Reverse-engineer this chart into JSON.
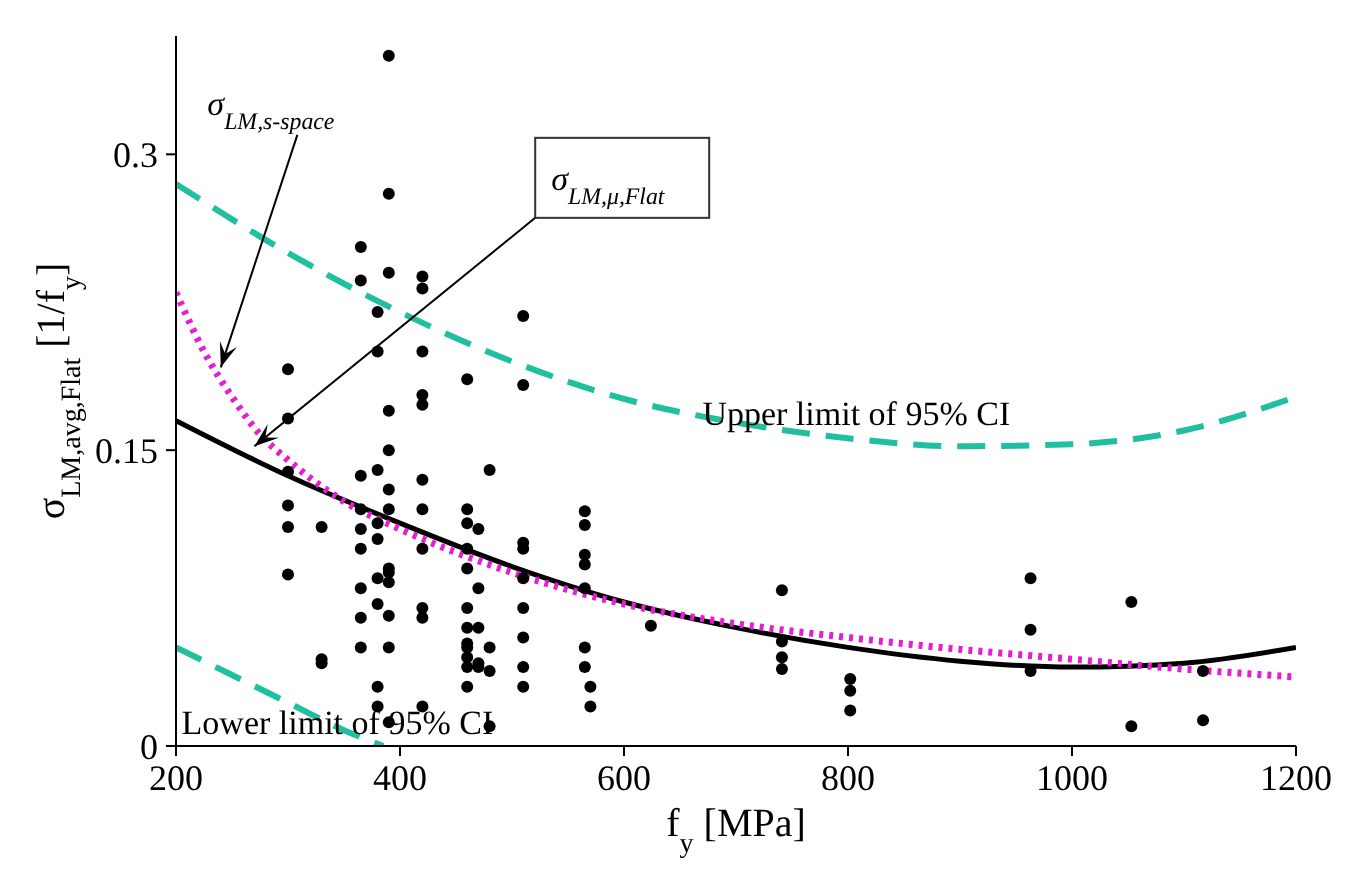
{
  "chart_data": {
    "type": "scatter",
    "xlabel": "f$_{y}$ [MPa]",
    "ylabel": "σ$_{LM,avg,Flat}$ [1/f$_{y}$]",
    "xlim": [
      200,
      1200
    ],
    "xticks": [
      200,
      400,
      600,
      800,
      1000,
      1200
    ],
    "ylim": [
      0,
      0.36
    ],
    "yticks": [
      0,
      0.15,
      0.3
    ],
    "grid": false,
    "legend": false,
    "series": [
      {
        "color": "#000000",
        "x": [
          300,
          300,
          300,
          300,
          300,
          300,
          330,
          330,
          330,
          365,
          365,
          365,
          365,
          365,
          365,
          365,
          365,
          365,
          380,
          380,
          380,
          380,
          380,
          380,
          380,
          380,
          380,
          390,
          390,
          390,
          390,
          390,
          390,
          390,
          390,
          390,
          390,
          390,
          390,
          390,
          420,
          420,
          420,
          420,
          420,
          420,
          420,
          420,
          420,
          420,
          420,
          460,
          460,
          460,
          460,
          460,
          460,
          460,
          460,
          460,
          460,
          460,
          460,
          470,
          470,
          470,
          470,
          470,
          480,
          480,
          480,
          480,
          510,
          510,
          510,
          510,
          510,
          510,
          510,
          510,
          510,
          565,
          565,
          565,
          565,
          565,
          565,
          565,
          570,
          570,
          624,
          741,
          741,
          741,
          741,
          802,
          802,
          802,
          963,
          963,
          963,
          1053,
          1053,
          1117,
          1117
        ],
        "values": [
          0.191,
          0.166,
          0.139,
          0.122,
          0.111,
          0.087,
          0.042,
          0.044,
          0.111,
          0.253,
          0.236,
          0.137,
          0.12,
          0.11,
          0.1,
          0.08,
          0.065,
          0.05,
          0.22,
          0.2,
          0.14,
          0.113,
          0.105,
          0.085,
          0.072,
          0.03,
          0.02,
          0.35,
          0.28,
          0.24,
          0.17,
          0.15,
          0.13,
          0.12,
          0.09,
          0.088,
          0.083,
          0.066,
          0.05,
          0.012,
          0.238,
          0.232,
          0.2,
          0.178,
          0.173,
          0.135,
          0.12,
          0.1,
          0.07,
          0.065,
          0.02,
          0.186,
          0.12,
          0.113,
          0.1,
          0.09,
          0.07,
          0.06,
          0.052,
          0.05,
          0.045,
          0.04,
          0.03,
          0.11,
          0.08,
          0.06,
          0.042,
          0.04,
          0.14,
          0.05,
          0.038,
          0.01,
          0.218,
          0.183,
          0.103,
          0.1,
          0.085,
          0.07,
          0.055,
          0.04,
          0.03,
          0.119,
          0.112,
          0.097,
          0.092,
          0.08,
          0.05,
          0.04,
          0.03,
          0.02,
          0.061,
          0.079,
          0.053,
          0.045,
          0.039,
          0.034,
          0.028,
          0.018,
          0.085,
          0.059,
          0.038,
          0.073,
          0.01,
          0.038,
          0.013
        ]
      },
      {
        "type": "line",
        "name": "σ$_{LM,μ,Flat}$",
        "color": "#000000",
        "line_style": "solid",
        "x": [
          200,
          300,
          400,
          500,
          600,
          700,
          800,
          900,
          1000,
          1100,
          1200
        ],
        "values": [
          0.165,
          0.137,
          0.113,
          0.091,
          0.073,
          0.06,
          0.05,
          0.043,
          0.04,
          0.042,
          0.05
        ]
      },
      {
        "type": "line",
        "name": "σ$_{LM,s-space}$",
        "color": "#e61ed2",
        "line_style": "dotted",
        "x": [
          200,
          225,
          250,
          275,
          300,
          350,
          400,
          500,
          600,
          700,
          800,
          900,
          1000,
          1100,
          1200
        ],
        "values": [
          0.23,
          0.2,
          0.177,
          0.158,
          0.145,
          0.124,
          0.11,
          0.088,
          0.072,
          0.062,
          0.055,
          0.049,
          0.044,
          0.039,
          0.035
        ]
      },
      {
        "type": "line",
        "name": "Upper limit of 95% CI",
        "color": "#1fbf9f",
        "line_style": "dashed",
        "x": [
          200,
          300,
          400,
          500,
          600,
          700,
          800,
          900,
          1000,
          1100,
          1200
        ],
        "values": [
          0.285,
          0.25,
          0.22,
          0.195,
          0.176,
          0.164,
          0.156,
          0.152,
          0.153,
          0.16,
          0.177
        ]
      },
      {
        "type": "line",
        "name": "Lower limit of 95% CI",
        "color": "#1fbf9f",
        "line_style": "dashed",
        "x": [
          200,
          250,
          300,
          350,
          385
        ],
        "values": [
          0.05,
          0.036,
          0.022,
          0.008,
          0
        ]
      }
    ]
  }
}
